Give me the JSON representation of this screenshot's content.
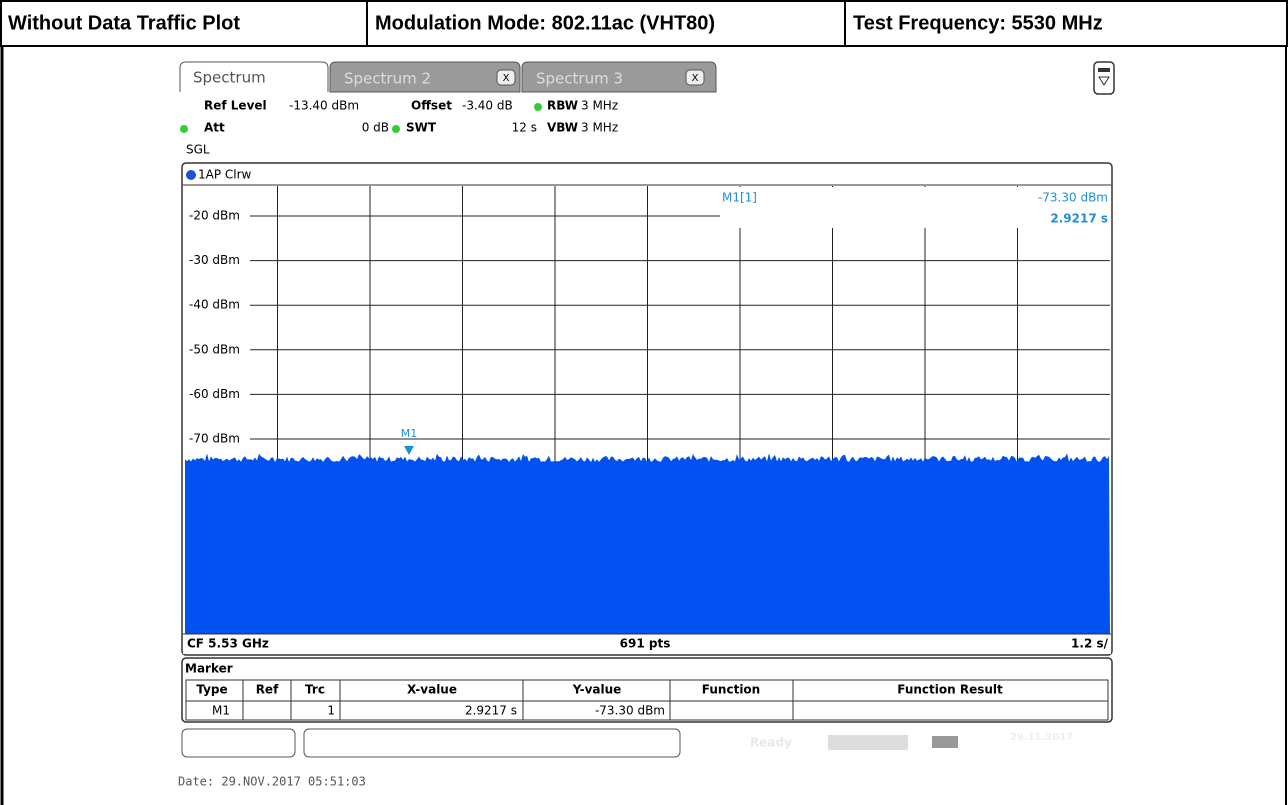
{
  "header": {
    "cells": [
      "Without Data Traffic Plot",
      "Modulation Mode: 802.11ac (VHT80)",
      "Test Frequency: 5530 MHz"
    ]
  },
  "tabs": [
    {
      "label": "Spectrum"
    },
    {
      "label": "Spectrum 2",
      "close": "X"
    },
    {
      "label": "Spectrum 3",
      "close": "X"
    }
  ],
  "settings": {
    "ref_level": {
      "name": "Ref Level",
      "value": "-13.40 dBm"
    },
    "offset": {
      "name": "Offset",
      "value": "-3.40 dB"
    },
    "rbw": {
      "name": "RBW",
      "value": "3 MHz"
    },
    "att": {
      "name": "Att",
      "value": "0 dB"
    },
    "swt": {
      "name": "SWT",
      "value": "12 s"
    },
    "vbw": {
      "name": "VBW",
      "value": "3 MHz"
    },
    "mode": "SGL"
  },
  "trace_label": "1AP Clrw",
  "y_labels": [
    "-20 dBm",
    "-30 dBm",
    "-40 dBm",
    "-50 dBm",
    "-60 dBm",
    "-70 dBm"
  ],
  "marker_readout": {
    "name": "M1[1]",
    "level": "-73.30 dBm",
    "time": "2.9217 s"
  },
  "marker_symbol": "M1",
  "footer": {
    "cf": "CF 5.53 GHz",
    "points": "691 pts",
    "sweep": "1.2 s/"
  },
  "marker_table": {
    "title": "Marker",
    "columns": [
      "Type",
      "Ref",
      "Trc",
      "X-value",
      "Y-value",
      "Function",
      "Function Result"
    ],
    "row": {
      "type": "M1",
      "trc": "1",
      "x": "2.9217 s",
      "y": "-73.30 dBm"
    }
  },
  "status": {
    "state": "Ready",
    "date": "29.11.2017"
  },
  "date_line": "Date: 29.NOV.2017  05:51:03"
}
